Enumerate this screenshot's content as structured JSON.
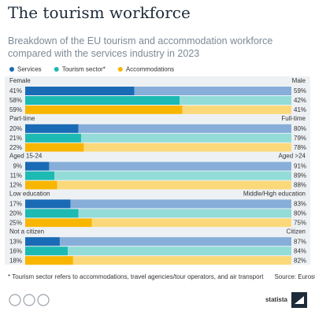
{
  "chart_data": {
    "type": "bar100",
    "title": "The tourism workforce",
    "subtitle": "Breakdown of the EU tourism and accommodation workforce compared with the services industry in 2023",
    "xlim": [
      0,
      100
    ],
    "series": [
      {
        "name": "Services",
        "color": "#1a6bb5",
        "light_color": "#86aed9"
      },
      {
        "name": "Tourism sector*",
        "color": "#1cbab3",
        "light_color": "#93dcd8"
      },
      {
        "name": "Accommodations",
        "color": "#f8b600",
        "light_color": "#fbd97a"
      }
    ],
    "groups": [
      {
        "left_label": "Female",
        "right_label": "Male",
        "values": [
          41,
          58,
          59
        ],
        "value_labels": [
          "41%",
          "58%",
          "59%"
        ],
        "right_values": [
          59,
          42,
          41
        ],
        "right_value_labels": [
          "59%",
          "42%",
          "41%"
        ]
      },
      {
        "left_label": "Part-time",
        "right_label": "Full-time",
        "values": [
          20,
          21,
          22
        ],
        "value_labels": [
          "20%",
          "21%",
          "22%"
        ],
        "right_values": [
          80,
          79,
          78
        ],
        "right_value_labels": [
          "80%",
          "79%",
          "78%"
        ]
      },
      {
        "left_label": "Aged 15-24",
        "right_label": "Aged >24",
        "values": [
          9,
          11,
          12
        ],
        "value_labels": [
          "9%",
          "11%",
          "12%"
        ],
        "right_values": [
          91,
          89,
          88
        ],
        "right_value_labels": [
          "91%",
          "89%",
          "88%"
        ]
      },
      {
        "left_label": "Low education",
        "right_label": "Middle/High education",
        "values": [
          17,
          20,
          25
        ],
        "value_labels": [
          "17%",
          "20%",
          "25%"
        ],
        "right_values": [
          83,
          80,
          75
        ],
        "right_value_labels": [
          "83%",
          "80%",
          "75%"
        ]
      },
      {
        "left_label": "Not a citizen",
        "right_label": "Citizen",
        "values": [
          13,
          16,
          18
        ],
        "value_labels": [
          "13%",
          "16%",
          "18%"
        ],
        "right_values": [
          87,
          84,
          82
        ],
        "right_value_labels": [
          "87%",
          "84%",
          "82%"
        ]
      }
    ],
    "footnote": "* Tourism sector refers to accommodations, travel agencies/tour operators, and air transport",
    "source": "Source: Eurostat",
    "brand": "statista"
  }
}
